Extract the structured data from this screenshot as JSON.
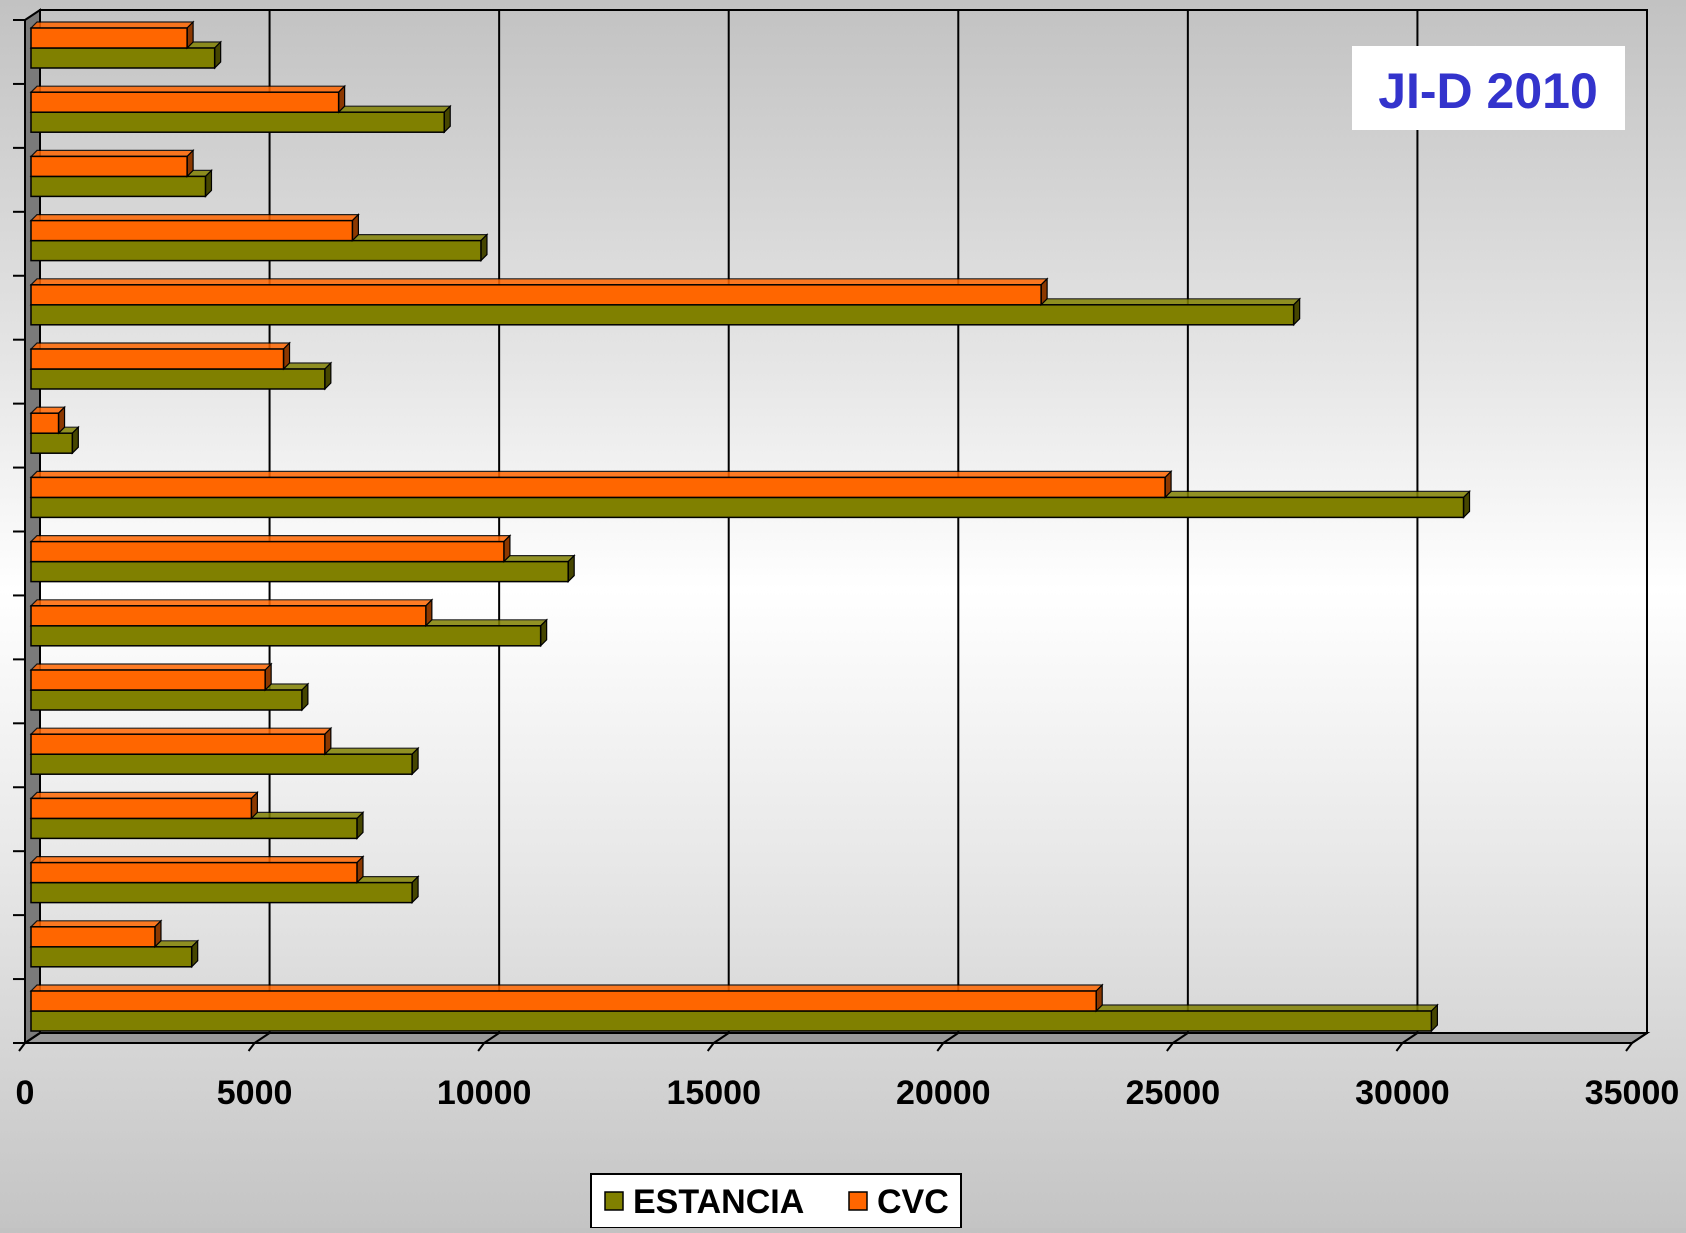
{
  "chart_data": {
    "type": "bar",
    "orientation": "horizontal",
    "three_d": true,
    "title": "JI-D 2010",
    "xlabel": "",
    "ylabel": "",
    "xlim": [
      0,
      35000
    ],
    "x_ticks": [
      "0",
      "5000",
      "10000",
      "15000",
      "20000",
      "25000",
      "30000",
      "35000"
    ],
    "categories": [
      "",
      "",
      "",
      "",
      "",
      "",
      "",
      "",
      "",
      "",
      "",
      "",
      "",
      "",
      "",
      ""
    ],
    "series": [
      {
        "name": "ESTANCIA",
        "color": "#808000",
        "values": [
          4000,
          9000,
          3800,
          9800,
          27500,
          6400,
          900,
          31200,
          11700,
          11100,
          5900,
          8300,
          7100,
          8300,
          3500,
          30500
        ]
      },
      {
        "name": "CVC",
        "color": "#ff6600",
        "values": [
          3400,
          6700,
          3400,
          7000,
          22000,
          5500,
          600,
          24700,
          10300,
          8600,
          5100,
          6400,
          4800,
          7100,
          2700,
          23200
        ]
      }
    ],
    "grid": true,
    "legend_position": "bottom-center"
  }
}
